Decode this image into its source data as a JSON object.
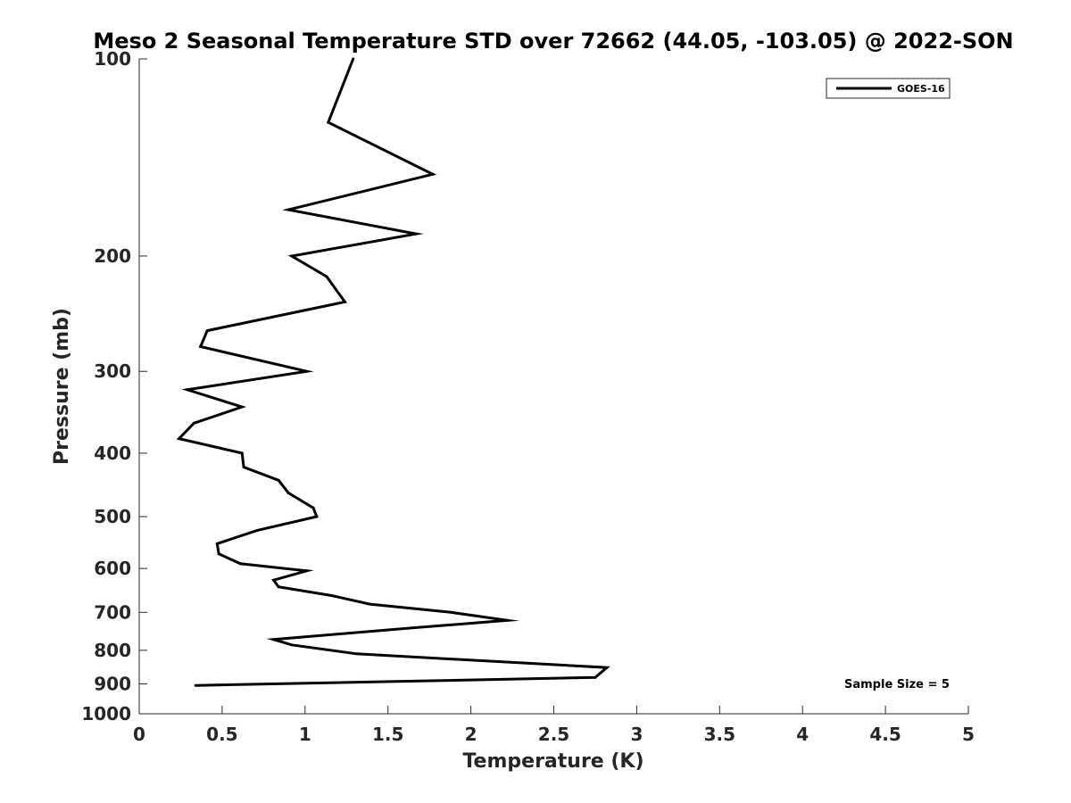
{
  "chart_data": {
    "type": "line",
    "title": "Meso 2 Seasonal Temperature STD over 72662 (44.05, -103.05) @ 2022-SON",
    "xlabel": "Temperature (K)",
    "ylabel": "Pressure (mb)",
    "xlim": [
      0,
      5
    ],
    "ylim": [
      100,
      1000
    ],
    "yscale": "log",
    "yreversed": true,
    "xticks": [
      "0",
      "0.5",
      "1",
      "1.5",
      "2",
      "2.5",
      "3",
      "3.5",
      "4",
      "4.5",
      "5"
    ],
    "yticks": [
      "100",
      "200",
      "300",
      "400",
      "500",
      "600",
      "700",
      "800",
      "900",
      "1000"
    ],
    "grid": false,
    "legend_position": "top-right",
    "series": [
      {
        "name": "GOES-16",
        "color": "#000000",
        "points": [
          {
            "x": 1.29,
            "y": 100
          },
          {
            "x": 1.14,
            "y": 125
          },
          {
            "x": 1.77,
            "y": 150
          },
          {
            "x": 0.9,
            "y": 170
          },
          {
            "x": 1.67,
            "y": 185
          },
          {
            "x": 0.92,
            "y": 200
          },
          {
            "x": 1.13,
            "y": 215
          },
          {
            "x": 1.24,
            "y": 235
          },
          {
            "x": 0.41,
            "y": 260
          },
          {
            "x": 0.37,
            "y": 275
          },
          {
            "x": 1.01,
            "y": 300
          },
          {
            "x": 0.29,
            "y": 320
          },
          {
            "x": 0.62,
            "y": 340
          },
          {
            "x": 0.33,
            "y": 360
          },
          {
            "x": 0.24,
            "y": 380
          },
          {
            "x": 0.62,
            "y": 400
          },
          {
            "x": 0.63,
            "y": 420
          },
          {
            "x": 0.84,
            "y": 440
          },
          {
            "x": 0.9,
            "y": 460
          },
          {
            "x": 1.05,
            "y": 485
          },
          {
            "x": 1.07,
            "y": 500
          },
          {
            "x": 0.71,
            "y": 525
          },
          {
            "x": 0.47,
            "y": 550
          },
          {
            "x": 0.48,
            "y": 570
          },
          {
            "x": 0.61,
            "y": 590
          },
          {
            "x": 1.01,
            "y": 605
          },
          {
            "x": 0.81,
            "y": 625
          },
          {
            "x": 0.84,
            "y": 640
          },
          {
            "x": 1.16,
            "y": 660
          },
          {
            "x": 1.39,
            "y": 680
          },
          {
            "x": 1.88,
            "y": 700
          },
          {
            "x": 2.22,
            "y": 720
          },
          {
            "x": 1.63,
            "y": 740
          },
          {
            "x": 0.81,
            "y": 770
          },
          {
            "x": 0.92,
            "y": 785
          },
          {
            "x": 1.31,
            "y": 810
          },
          {
            "x": 2.82,
            "y": 850
          },
          {
            "x": 2.75,
            "y": 880
          },
          {
            "x": 0.34,
            "y": 905
          }
        ]
      }
    ],
    "annotations": [
      "Sample Size = 5"
    ]
  }
}
